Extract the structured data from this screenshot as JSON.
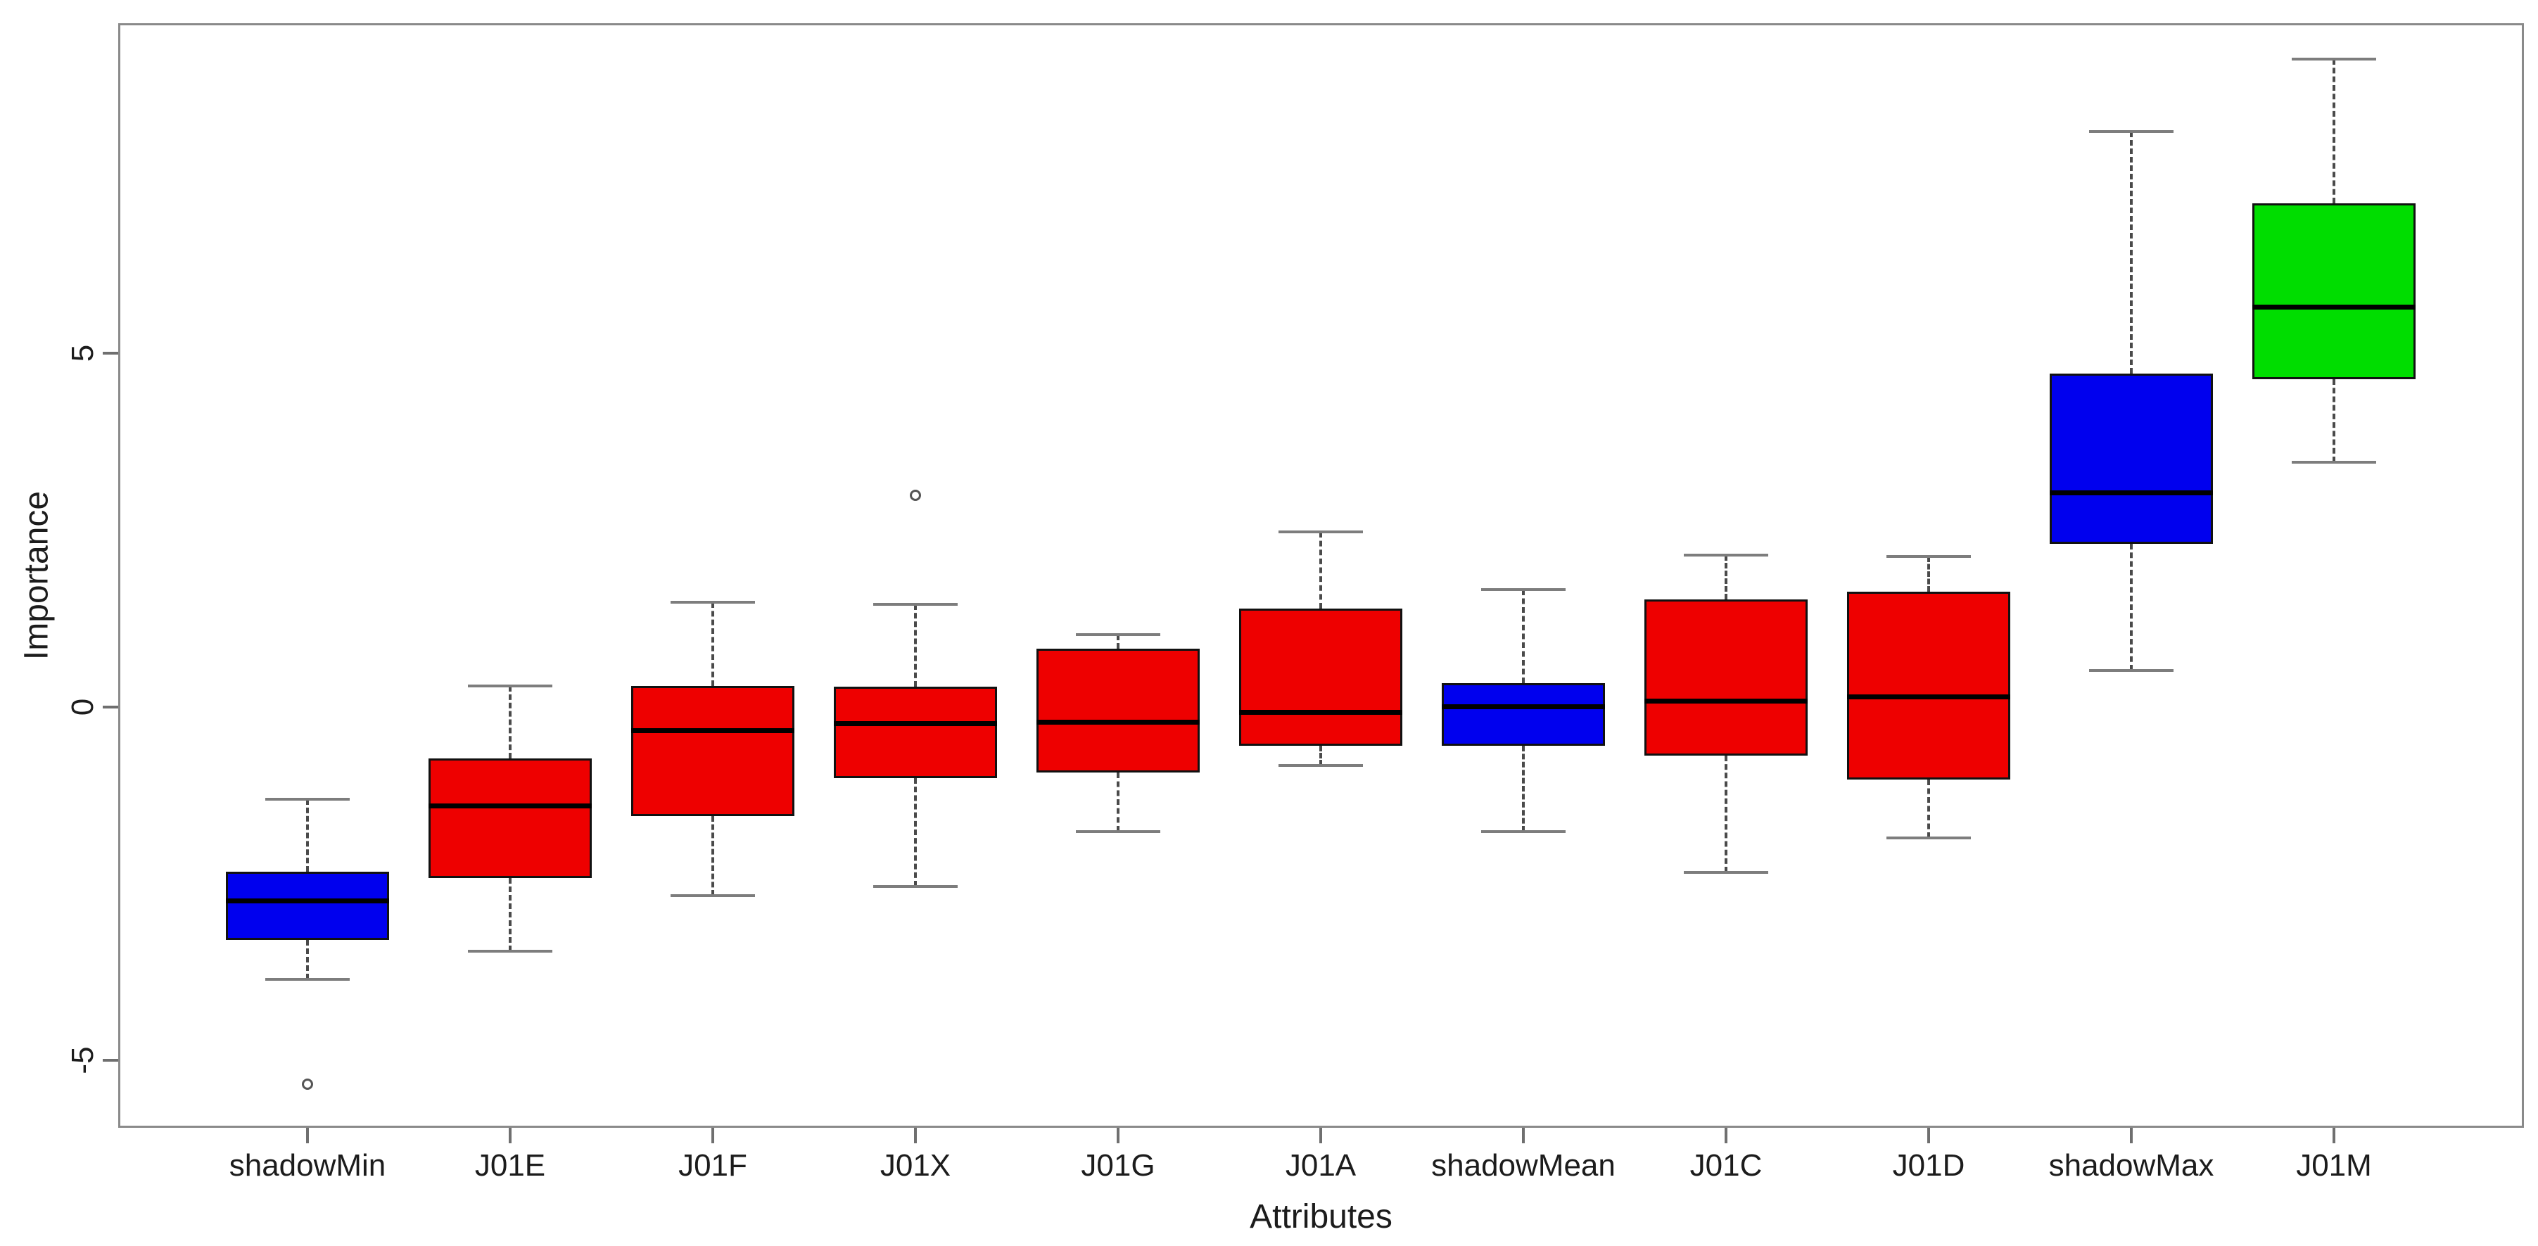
{
  "chart_data": {
    "type": "boxplot",
    "title": "",
    "xlabel": "Attributes",
    "ylabel": "Importance",
    "ylim": [
      -5.95,
      9.66
    ],
    "yticks": [
      5,
      0,
      -5
    ],
    "ytick_labels": [
      "5",
      "0",
      "-5"
    ],
    "grid": false,
    "legend": "none",
    "palette": {
      "rejected": "#ee0000",
      "shadow": "#0000ee",
      "confirmed": "#00dd00"
    },
    "categories": [
      "shadowMin",
      "J01E",
      "J01F",
      "J01X",
      "J01G",
      "J01A",
      "shadowMean",
      "J01C",
      "J01D",
      "shadowMax",
      "J01M"
    ],
    "boxes": [
      {
        "label": "shadowMin",
        "status": "shadow",
        "color": "#0000ee",
        "whisker_low": -3.85,
        "q1": -3.3,
        "median": -2.74,
        "q3": -2.33,
        "whisker_high": -1.31,
        "outliers": [
          -5.33
        ]
      },
      {
        "label": "J01E",
        "status": "rejected",
        "color": "#ee0000",
        "whisker_low": -3.45,
        "q1": -2.42,
        "median": -1.4,
        "q3": -0.73,
        "whisker_high": 0.29,
        "outliers": []
      },
      {
        "label": "J01F",
        "status": "rejected",
        "color": "#ee0000",
        "whisker_low": -2.67,
        "q1": -1.55,
        "median": -0.34,
        "q3": 0.29,
        "whisker_high": 1.48,
        "outliers": []
      },
      {
        "label": "J01X",
        "status": "rejected",
        "color": "#ee0000",
        "whisker_low": -2.54,
        "q1": -1.01,
        "median": -0.24,
        "q3": 0.28,
        "whisker_high": 1.45,
        "outliers": [
          2.99
        ]
      },
      {
        "label": "J01G",
        "status": "rejected",
        "color": "#ee0000",
        "whisker_low": -1.76,
        "q1": -0.93,
        "median": -0.22,
        "q3": 0.82,
        "whisker_high": 1.02,
        "outliers": []
      },
      {
        "label": "J01A",
        "status": "rejected",
        "color": "#ee0000",
        "whisker_low": -0.83,
        "q1": -0.55,
        "median": -0.08,
        "q3": 1.39,
        "whisker_high": 2.47,
        "outliers": []
      },
      {
        "label": "shadowMean",
        "status": "shadow",
        "color": "#0000ee",
        "whisker_low": -1.76,
        "q1": -0.55,
        "median": 0.0,
        "q3": 0.33,
        "whisker_high": 1.66,
        "outliers": []
      },
      {
        "label": "J01C",
        "status": "rejected",
        "color": "#ee0000",
        "whisker_low": -2.34,
        "q1": -0.69,
        "median": 0.08,
        "q3": 1.52,
        "whisker_high": 2.14,
        "outliers": []
      },
      {
        "label": "J01D",
        "status": "rejected",
        "color": "#ee0000",
        "whisker_low": -1.85,
        "q1": -1.03,
        "median": 0.14,
        "q3": 1.63,
        "whisker_high": 2.12,
        "outliers": []
      },
      {
        "label": "shadowMax",
        "status": "shadow",
        "color": "#0000ee",
        "whisker_low": 0.51,
        "q1": 2.3,
        "median": 3.02,
        "q3": 4.71,
        "whisker_high": 8.13,
        "outliers": []
      },
      {
        "label": "J01M",
        "status": "confirmed",
        "color": "#00dd00",
        "whisker_low": 3.46,
        "q1": 4.63,
        "median": 5.65,
        "q3": 7.11,
        "whisker_high": 9.15,
        "outliers": []
      }
    ]
  }
}
